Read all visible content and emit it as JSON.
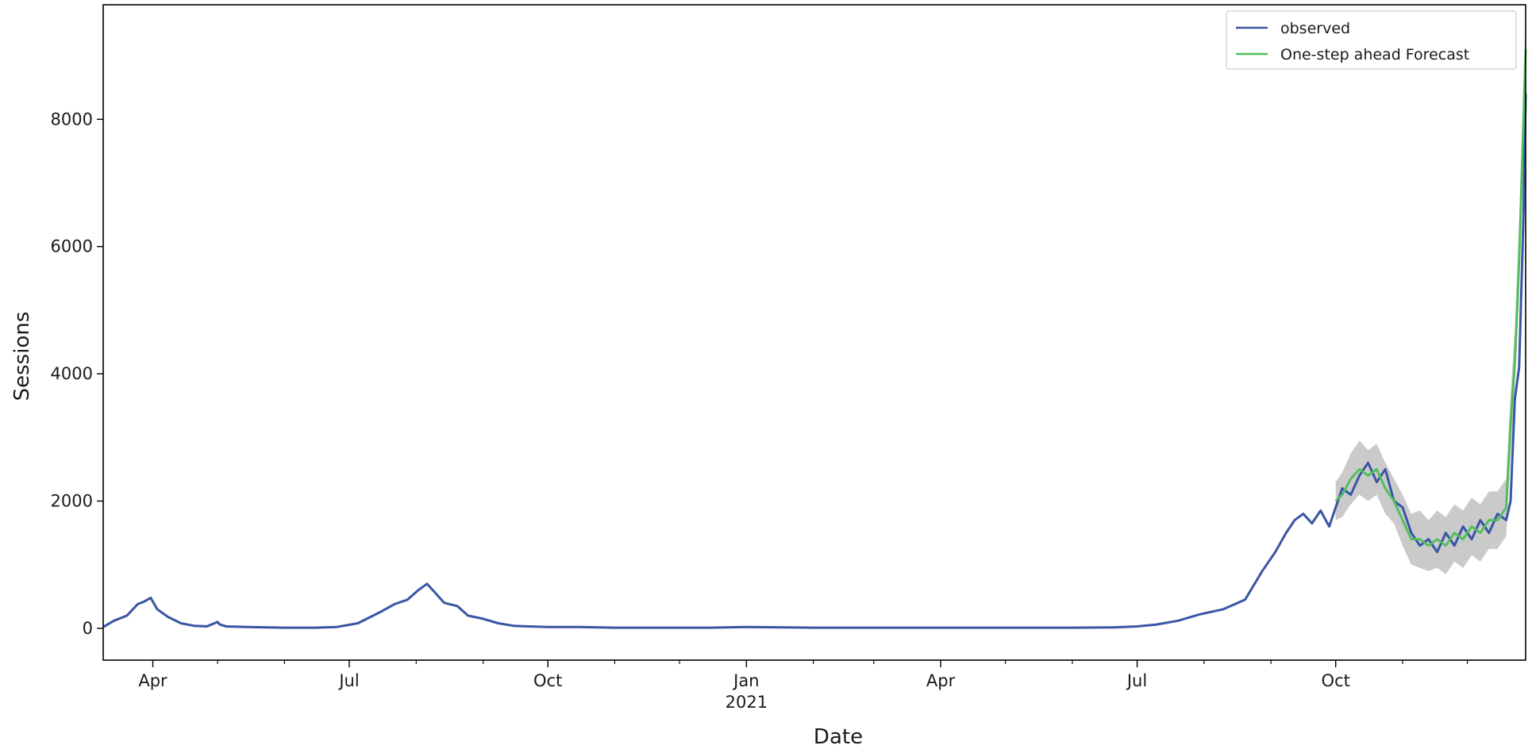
{
  "chart_data": {
    "type": "line",
    "title": "",
    "xlabel": "Date",
    "ylabel": "Sessions",
    "xlim": [
      "2020-03-09",
      "2021-12-28"
    ],
    "ylim": [
      -500,
      9800
    ],
    "yticks": [
      0,
      2000,
      4000,
      6000,
      8000
    ],
    "xticks": [
      {
        "date": "2020-04-01",
        "label": "Apr"
      },
      {
        "date": "2020-07-01",
        "label": "Jul"
      },
      {
        "date": "2020-10-01",
        "label": "Oct"
      },
      {
        "date": "2021-01-01",
        "label": "Jan"
      },
      {
        "date": "2021-04-01",
        "label": "Apr"
      },
      {
        "date": "2021-07-01",
        "label": "Jul"
      },
      {
        "date": "2021-10-01",
        "label": "Oct"
      }
    ],
    "year_label": "2021",
    "grid": false,
    "legend": {
      "position": "upper-right",
      "entries": [
        "observed",
        "One-step ahead Forecast"
      ]
    },
    "colors": {
      "observed": "#3a55a4",
      "forecast": "#4cbf5a",
      "confidence": "#b8b8b8"
    },
    "series": [
      {
        "name": "observed",
        "x": [
          "2020-03-09",
          "2020-03-14",
          "2020-03-20",
          "2020-03-25",
          "2020-03-28",
          "2020-03-31",
          "2020-04-03",
          "2020-04-08",
          "2020-04-14",
          "2020-04-20",
          "2020-04-26",
          "2020-05-01",
          "2020-05-02",
          "2020-05-05",
          "2020-05-15",
          "2020-06-01",
          "2020-06-15",
          "2020-06-25",
          "2020-07-05",
          "2020-07-15",
          "2020-07-22",
          "2020-07-28",
          "2020-08-02",
          "2020-08-06",
          "2020-08-10",
          "2020-08-14",
          "2020-08-20",
          "2020-08-25",
          "2020-09-01",
          "2020-09-08",
          "2020-09-15",
          "2020-09-22",
          "2020-10-01",
          "2020-10-15",
          "2020-11-01",
          "2020-11-15",
          "2020-12-01",
          "2020-12-15",
          "2021-01-01",
          "2021-02-01",
          "2021-03-01",
          "2021-04-01",
          "2021-05-01",
          "2021-06-01",
          "2021-06-20",
          "2021-07-01",
          "2021-07-10",
          "2021-07-20",
          "2021-07-30",
          "2021-08-10",
          "2021-08-20",
          "2021-08-28",
          "2021-09-03",
          "2021-09-08",
          "2021-09-12",
          "2021-09-16",
          "2021-09-20",
          "2021-09-24",
          "2021-09-28",
          "2021-10-01",
          "2021-10-04",
          "2021-10-08",
          "2021-10-12",
          "2021-10-16",
          "2021-10-20",
          "2021-10-24",
          "2021-10-28",
          "2021-11-01",
          "2021-11-05",
          "2021-11-09",
          "2021-11-13",
          "2021-11-17",
          "2021-11-21",
          "2021-11-25",
          "2021-11-29",
          "2021-12-03",
          "2021-12-07",
          "2021-12-11",
          "2021-12-15",
          "2021-12-19",
          "2021-12-21",
          "2021-12-23",
          "2021-12-25",
          "2021-12-27",
          "2021-12-28"
        ],
        "y": [
          20,
          120,
          200,
          380,
          420,
          480,
          300,
          180,
          80,
          40,
          30,
          100,
          60,
          30,
          20,
          10,
          10,
          20,
          80,
          250,
          380,
          450,
          600,
          700,
          550,
          400,
          350,
          200,
          150,
          80,
          40,
          30,
          20,
          20,
          10,
          10,
          10,
          10,
          20,
          10,
          10,
          10,
          10,
          10,
          15,
          30,
          60,
          120,
          220,
          300,
          450,
          900,
          1200,
          1500,
          1700,
          1800,
          1650,
          1850,
          1600,
          1900,
          2200,
          2100,
          2400,
          2600,
          2300,
          2500,
          2000,
          1900,
          1500,
          1300,
          1400,
          1200,
          1500,
          1300,
          1600,
          1400,
          1700,
          1500,
          1800,
          1700,
          2000,
          3600,
          4100,
          6500,
          8400
        ]
      },
      {
        "name": "One-step ahead Forecast",
        "x": [
          "2021-10-01",
          "2021-10-04",
          "2021-10-08",
          "2021-10-12",
          "2021-10-16",
          "2021-10-20",
          "2021-10-24",
          "2021-10-28",
          "2021-11-01",
          "2021-11-05",
          "2021-11-09",
          "2021-11-13",
          "2021-11-17",
          "2021-11-21",
          "2021-11-25",
          "2021-11-29",
          "2021-12-03",
          "2021-12-07",
          "2021-12-11",
          "2021-12-15",
          "2021-12-19",
          "2021-12-21",
          "2021-12-23",
          "2021-12-25",
          "2021-12-27",
          "2021-12-28"
        ],
        "y": [
          2000,
          2100,
          2350,
          2500,
          2400,
          2500,
          2200,
          2000,
          1700,
          1400,
          1400,
          1300,
          1400,
          1300,
          1500,
          1400,
          1600,
          1500,
          1700,
          1700,
          1900,
          3200,
          4200,
          5800,
          8000,
          9100
        ],
        "lower": [
          1700,
          1750,
          1950,
          2100,
          2000,
          2100,
          1800,
          1650,
          1300,
          1000,
          950,
          900,
          950,
          850,
          1050,
          950,
          1150,
          1050,
          1250,
          1250,
          1450,
          2700,
          3700,
          5200,
          7400,
          8500
        ],
        "upper": [
          2300,
          2450,
          2750,
          2950,
          2800,
          2900,
          2600,
          2350,
          2100,
          1800,
          1850,
          1700,
          1850,
          1750,
          1950,
          1850,
          2050,
          1950,
          2150,
          2150,
          2350,
          3700,
          4700,
          6400,
          8600,
          9700
        ]
      }
    ]
  }
}
